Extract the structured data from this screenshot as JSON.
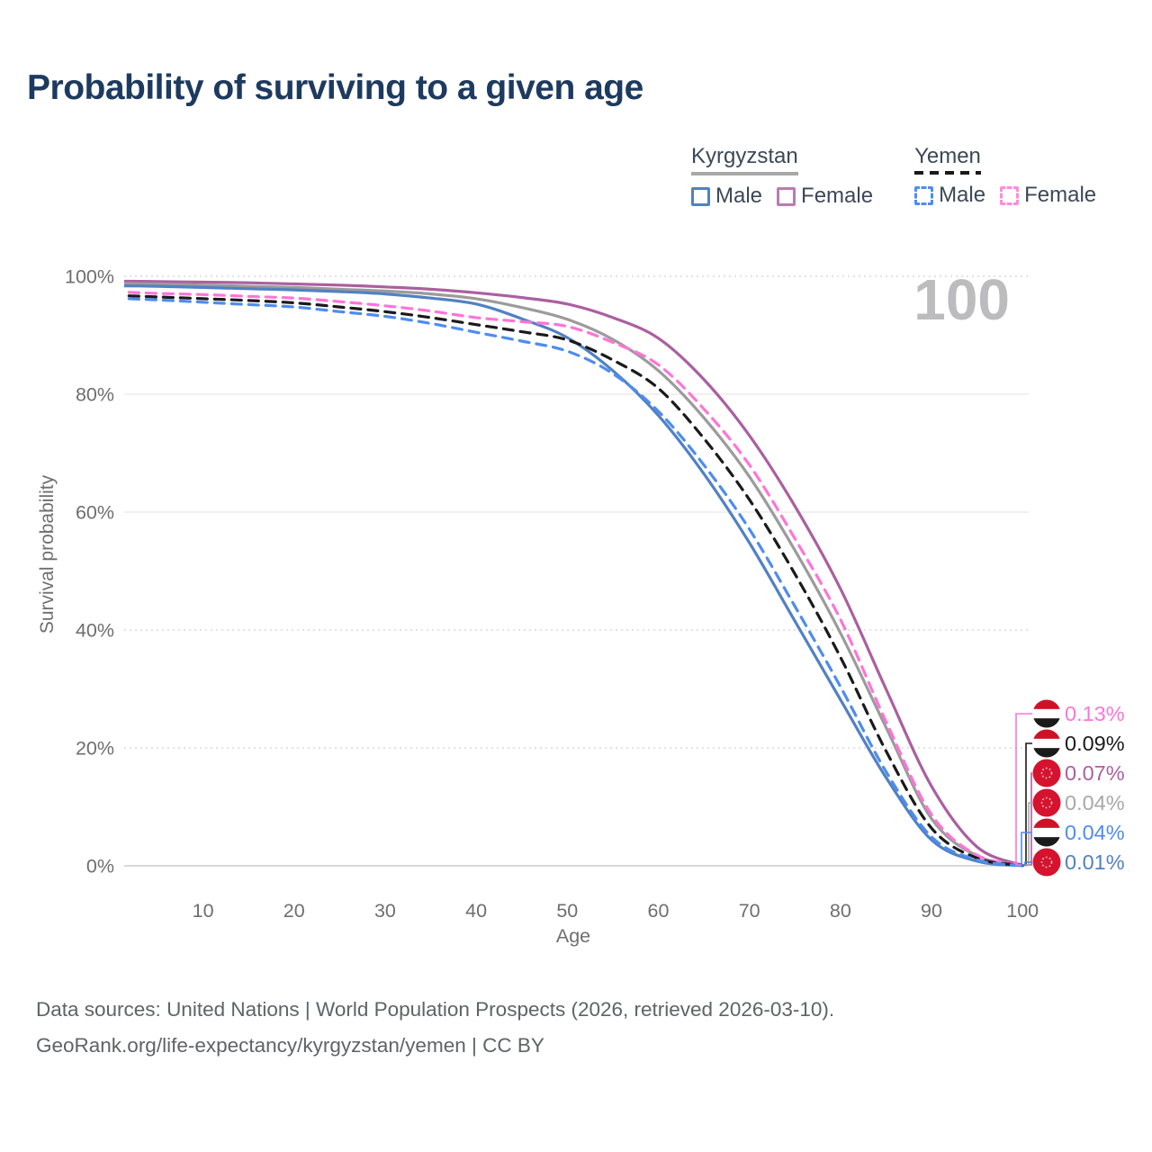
{
  "header": {
    "title": "Probability of surviving to a given age"
  },
  "watermark_age": "100",
  "legend": {
    "groups": [
      {
        "label": "Kyrgyzstan",
        "style": "solid",
        "underline_color": "#a8a8a8",
        "items": [
          {
            "label": "Male",
            "color": "#5181c2",
            "dashed": false
          },
          {
            "label": "Female",
            "color": "#bb7bb0",
            "dashed": false
          }
        ]
      },
      {
        "label": "Yemen",
        "style": "dashed",
        "underline_color": "#1a1a1a",
        "items": [
          {
            "label": "Male",
            "color": "#4e8cf0",
            "dashed": true
          },
          {
            "label": "Female",
            "color": "#ff8ade",
            "dashed": true
          }
        ]
      }
    ]
  },
  "chart_data": {
    "type": "line",
    "title": "Probability of surviving to a given age",
    "xlabel": "Age",
    "ylabel": "Survival probability",
    "xlim": [
      0,
      100
    ],
    "ylim": [
      0,
      100
    ],
    "grid": "horizontal",
    "x_ticks": [
      10,
      20,
      30,
      40,
      50,
      60,
      70,
      80,
      90,
      100
    ],
    "y_ticks": [
      {
        "label": "0%",
        "value": 0
      },
      {
        "label": "20%",
        "value": 20
      },
      {
        "label": "40%",
        "value": 40
      },
      {
        "label": "60%",
        "value": 60
      },
      {
        "label": "80%",
        "value": 80
      },
      {
        "label": "100%",
        "value": 100
      }
    ],
    "x": [
      0,
      5,
      10,
      15,
      20,
      25,
      30,
      35,
      40,
      45,
      50,
      55,
      60,
      65,
      70,
      75,
      80,
      85,
      90,
      95,
      100
    ],
    "series": [
      {
        "name": "Kyrgyzstan Female",
        "country": "Kyrgyzstan",
        "sex": "Female",
        "color": "#ab5fa0",
        "dash": false,
        "values": [
          99.2,
          99.1,
          99.0,
          98.9,
          98.7,
          98.5,
          98.2,
          97.8,
          97.2,
          96.4,
          95.3,
          93.0,
          89.5,
          82.5,
          73.0,
          61.0,
          47.0,
          30.0,
          13.5,
          3.2,
          0.07
        ]
      },
      {
        "name": "Kyrgyzstan All",
        "country": "Kyrgyzstan",
        "sex": "Both",
        "color": "#9b9b9b",
        "dash": false,
        "values": [
          98.8,
          98.7,
          98.5,
          98.3,
          98.1,
          97.8,
          97.5,
          97.0,
          96.2,
          94.7,
          92.7,
          89.3,
          84.0,
          76.0,
          66.0,
          53.5,
          39.5,
          23.5,
          8.0,
          1.7,
          0.04
        ]
      },
      {
        "name": "Kyrgyzstan Male",
        "country": "Kyrgyzstan",
        "sex": "Male",
        "color": "#5181c2",
        "dash": false,
        "values": [
          98.4,
          98.3,
          98.1,
          97.9,
          97.7,
          97.4,
          97.0,
          96.3,
          95.3,
          92.8,
          89.6,
          84.0,
          76.4,
          66.5,
          54.8,
          41.5,
          28.2,
          15.0,
          4.4,
          0.8,
          0.01
        ]
      },
      {
        "name": "Yemen Female",
        "country": "Yemen",
        "sex": "Female",
        "color": "#ff74d8",
        "dash": true,
        "values": [
          97.4,
          97.1,
          96.9,
          96.6,
          96.3,
          95.7,
          95.0,
          94.1,
          93.0,
          92.3,
          91.5,
          88.8,
          85.0,
          77.5,
          68.0,
          55.5,
          41.8,
          24.5,
          8.7,
          1.8,
          0.13
        ]
      },
      {
        "name": "Yemen All",
        "country": "Yemen",
        "sex": "Both",
        "color": "#1a1a1a",
        "dash": true,
        "values": [
          96.8,
          96.5,
          96.2,
          95.9,
          95.5,
          94.8,
          94.0,
          93.0,
          91.8,
          90.6,
          89.2,
          85.8,
          81.0,
          72.5,
          62.1,
          49.5,
          35.4,
          19.5,
          6.4,
          1.3,
          0.09
        ]
      },
      {
        "name": "Yemen Male",
        "country": "Yemen",
        "sex": "Male",
        "color": "#4e8cf0",
        "dash": true,
        "values": [
          96.3,
          96.0,
          95.6,
          95.2,
          94.8,
          94.0,
          93.2,
          92.0,
          90.5,
          89.0,
          87.3,
          83.5,
          77.1,
          68.0,
          57.1,
          44.0,
          30.4,
          16.0,
          4.9,
          1.0,
          0.04
        ]
      }
    ],
    "end_labels": [
      {
        "text": "0.13%",
        "series": "Yemen Female",
        "color": "#ff74d8",
        "flag": "yemen"
      },
      {
        "text": "0.09%",
        "series": "Yemen All",
        "color": "#1a1a1a",
        "flag": "yemen"
      },
      {
        "text": "0.07%",
        "series": "Kyrgyzstan Female",
        "color": "#ab5fa0",
        "flag": "kyrgyzstan"
      },
      {
        "text": "0.04%",
        "series": "Kyrgyzstan All",
        "color": "#a8a8a8",
        "flag": "kyrgyzstan"
      },
      {
        "text": "0.04%",
        "series": "Yemen Male",
        "color": "#4e8cf0",
        "flag": "yemen"
      },
      {
        "text": "0.01%",
        "series": "Kyrgyzstan Male",
        "color": "#5181c2",
        "flag": "kyrgyzstan"
      }
    ],
    "flag_colors": {
      "yemen": [
        "#ce1126",
        "#ffffff",
        "#1a1a1a"
      ],
      "kyrgyzstan": [
        "#d5132f"
      ]
    }
  },
  "footer": {
    "line1": "Data sources: United Nations | World Population Prospects (2026, retrieved 2026-03-10).",
    "line2": "GeoRank.org/life-expectancy/kyrgyzstan/yemen | CC BY"
  }
}
